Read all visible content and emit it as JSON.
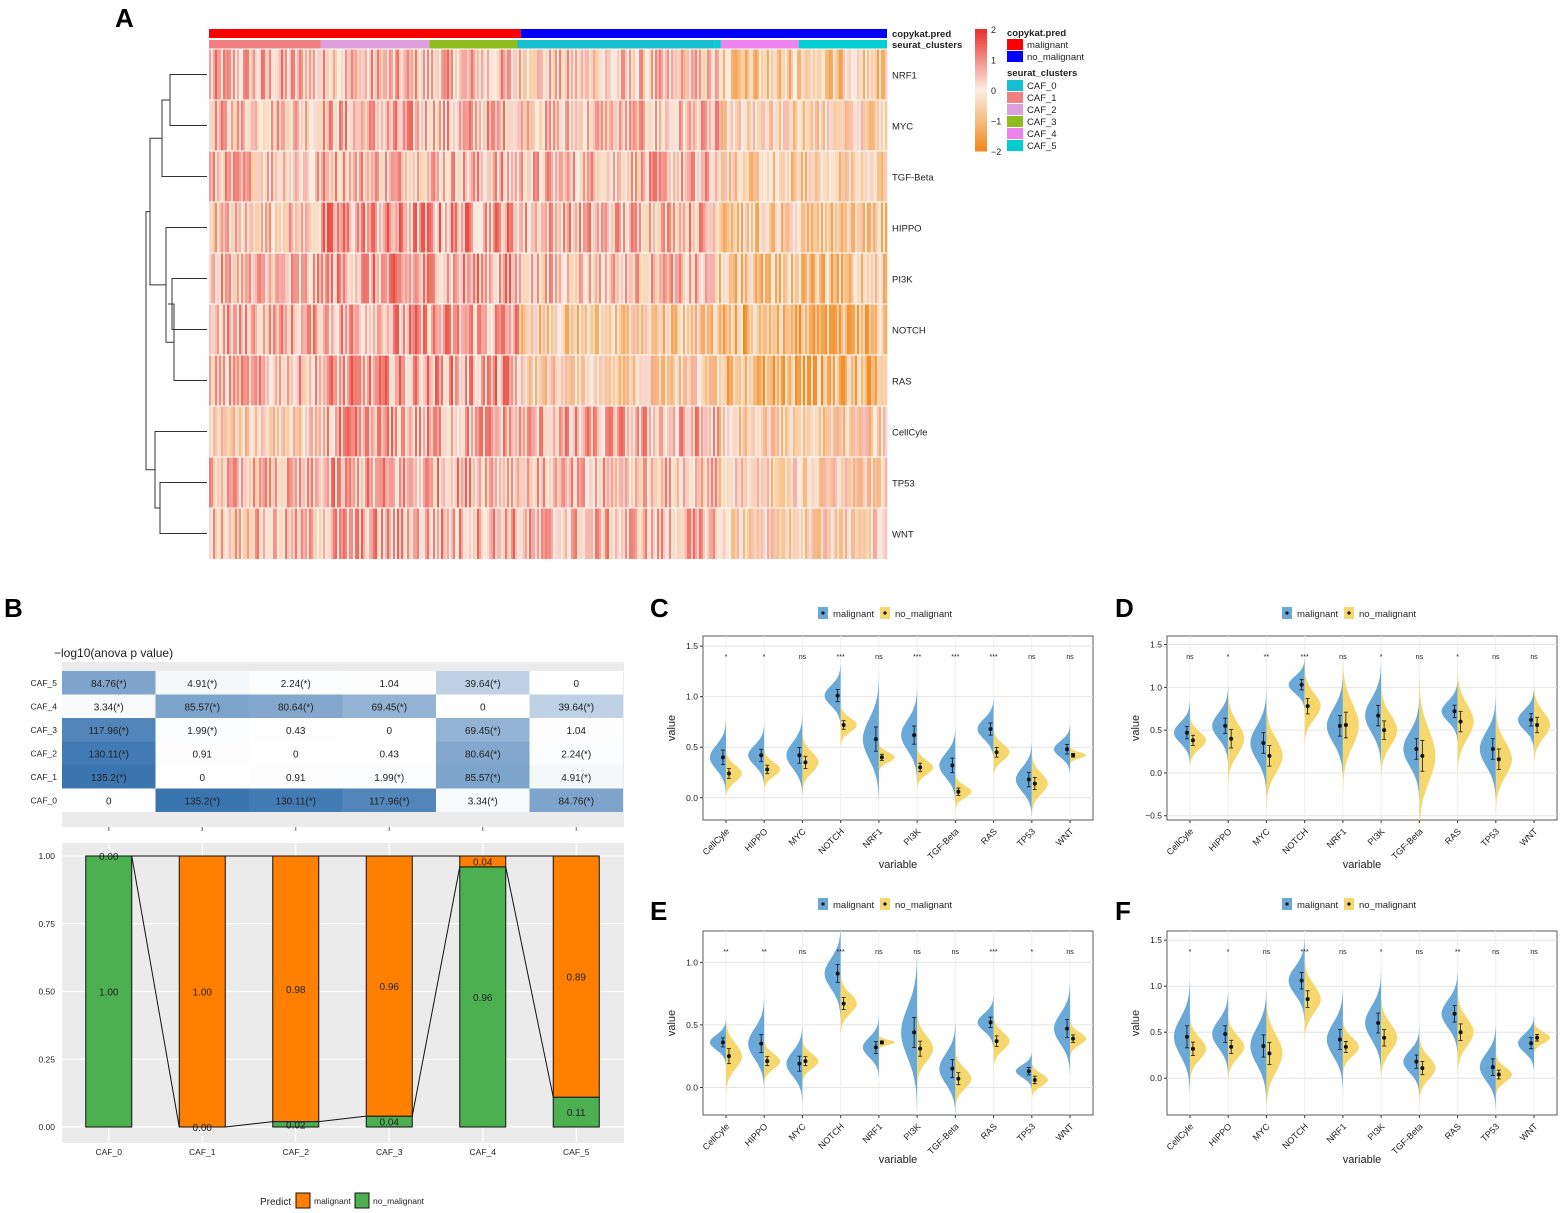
{
  "panel_labels": [
    "A",
    "B",
    "C",
    "D",
    "E",
    "F"
  ],
  "colors": {
    "malignant": "#ff0000",
    "no_malignant": "#0000ff",
    "caf": [
      "#17becf",
      "#f08080",
      "#dda0dd",
      "#8fbc1f",
      "#ee82ee",
      "#00ced1"
    ],
    "heat_low": "#f28a1e",
    "heat_mid": "#fbeee4",
    "heat_high": "#e8312a",
    "violin_malignant": "#6aa8d8",
    "violin_no_malignant": "#f5d76e",
    "bar_malignant": "#ff8000",
    "bar_no_malignant": "#4caf50",
    "anova_dark": "#3b75b0"
  },
  "chart_data": [
    {
      "id": "A",
      "type": "heatmap",
      "rows": [
        "NRF1",
        "MYC",
        "TGF-Beta",
        "HIPPO",
        "PI3K",
        "NOTCH",
        "RAS",
        "CellCyle",
        "TP53",
        "WNT"
      ],
      "annotation_names": [
        "copykat.pred",
        "seurat_clusters"
      ],
      "copykat_legend": {
        "title": "copykat.pred",
        "items": [
          "malignant",
          "no_malignant"
        ]
      },
      "cluster_legend": {
        "title": "seurat_clusters",
        "items": [
          "CAF_0",
          "CAF_1",
          "CAF_2",
          "CAF_3",
          "CAF_4",
          "CAF_5"
        ]
      },
      "copykat_split": [
        [
          "malignant",
          0.46
        ],
        [
          "no_malignant",
          0.54
        ]
      ],
      "cluster_segments": [
        [
          "CAF_1",
          0.165
        ],
        [
          "CAF_2",
          0.16
        ],
        [
          "CAF_3",
          0.13
        ],
        [
          "CAF_0",
          0.29
        ],
        [
          "CAF_5",
          0.01
        ],
        [
          "CAF_4",
          0.115
        ],
        [
          "CAF_5",
          0.13
        ]
      ],
      "color_scale": {
        "ticks": [
          "2",
          "1",
          "0",
          "−1",
          "−2"
        ],
        "range": [
          -2,
          2
        ]
      },
      "row_mean_by_region": {
        "NRF1": [
          0.5,
          0.4,
          0.2,
          -0.6
        ],
        "MYC": [
          0.4,
          0.5,
          0.3,
          -0.3
        ],
        "TGF-Beta": [
          0.4,
          0.5,
          0.4,
          -0.4
        ],
        "HIPPO": [
          0.2,
          0.8,
          0.5,
          -0.6
        ],
        "PI3K": [
          0.4,
          0.7,
          0.3,
          -0.7
        ],
        "NOTCH": [
          0.5,
          0.7,
          -0.5,
          -1.0
        ],
        "RAS": [
          0.4,
          0.7,
          -0.3,
          -1.1
        ],
        "CellCyle": [
          -0.2,
          0.6,
          0.5,
          -0.3
        ],
        "TP53": [
          0.3,
          0.6,
          0.3,
          -0.2
        ],
        "WNT": [
          0.3,
          0.6,
          0.4,
          -0.2
        ]
      }
    },
    {
      "id": "B-top",
      "type": "heatmap",
      "title": "−log10(anova p value)",
      "rows": [
        "CAF_5",
        "CAF_4",
        "CAF_3",
        "CAF_2",
        "CAF_1",
        "CAF_0"
      ],
      "cols": [
        "CAF_0",
        "CAF_1",
        "CAF_2",
        "CAF_3",
        "CAF_4",
        "CAF_5"
      ],
      "values": [
        [
          84.76,
          4.91,
          2.24,
          1.04,
          39.64,
          0
        ],
        [
          3.34,
          85.57,
          80.64,
          69.45,
          0,
          39.64
        ],
        [
          117.96,
          1.99,
          0.43,
          0,
          69.45,
          1.04
        ],
        [
          130.11,
          0.91,
          0,
          0.43,
          80.64,
          2.24
        ],
        [
          135.2,
          0,
          0.91,
          1.99,
          85.57,
          4.91
        ],
        [
          0,
          135.2,
          130.11,
          117.96,
          3.34,
          84.76
        ]
      ],
      "labels": [
        [
          "84.76(*)",
          "4.91(*)",
          "2.24(*)",
          "1.04",
          "39.64(*)",
          "0"
        ],
        [
          "3.34(*)",
          "85.57(*)",
          "80.64(*)",
          "69.45(*)",
          "0",
          "39.64(*)"
        ],
        [
          "117.96(*)",
          "1.99(*)",
          "0.43",
          "0",
          "69.45(*)",
          "1.04"
        ],
        [
          "130.11(*)",
          "0.91",
          "0",
          "0.43",
          "80.64(*)",
          "2.24(*)"
        ],
        [
          "135.2(*)",
          "0",
          "0.91",
          "1.99(*)",
          "85.57(*)",
          "4.91(*)"
        ],
        [
          "0",
          "135.2(*)",
          "130.11(*)",
          "117.96(*)",
          "3.34(*)",
          "84.76(*)"
        ]
      ],
      "max": 135.2
    },
    {
      "id": "B-bottom",
      "type": "bar",
      "stacked": true,
      "categories": [
        "CAF_0",
        "CAF_1",
        "CAF_2",
        "CAF_3",
        "CAF_4",
        "CAF_5"
      ],
      "series": [
        {
          "name": "malignant",
          "values": [
            0.0,
            1.0,
            0.98,
            0.96,
            0.04,
            0.89
          ]
        },
        {
          "name": "no_malignant",
          "values": [
            1.0,
            0.0,
            0.02,
            0.04,
            0.96,
            0.11
          ]
        }
      ],
      "malignant_labels": [
        "",
        "1.00",
        "0.98",
        "0.96",
        "0.04",
        "0.89"
      ],
      "no_malignant_labels": [
        "1.00",
        "",
        "0.02",
        "0.04",
        "0.96",
        "0.11"
      ],
      "overlap_labels": [
        "0.00",
        "0.00"
      ],
      "y_ticks": [
        "0.00",
        "0.25",
        "0.50",
        "0.75",
        "1.00"
      ],
      "ylim": [
        0,
        1
      ],
      "legend": {
        "title": "Predict",
        "items": [
          "malignant",
          "no_malignant"
        ],
        "placement": "bottom"
      }
    },
    {
      "id": "C",
      "type": "violin",
      "legend": [
        "malignant",
        "no_malignant"
      ],
      "xlabel": "variable",
      "ylabel": "value",
      "categories": [
        "CellCyle",
        "HIPPO",
        "MYC",
        "NOTCH",
        "NRF1",
        "PI3K",
        "TGF-Beta",
        "RAS",
        "TP53",
        "WNT"
      ],
      "significance": [
        "*",
        "*",
        "ns",
        "***",
        "ns",
        "***",
        "***",
        "***",
        "ns",
        "ns"
      ],
      "y_ticks": [
        "0.0",
        "0.5",
        "1.0",
        "1.5"
      ],
      "ylim": [
        -0.22,
        1.6
      ],
      "malignant_mean": [
        0.4,
        0.42,
        0.42,
        1.01,
        0.58,
        0.62,
        0.32,
        0.68,
        0.18,
        0.48
      ],
      "malignant_sd": [
        0.12,
        0.1,
        0.13,
        0.1,
        0.2,
        0.15,
        0.12,
        0.1,
        0.12,
        0.08
      ],
      "no_malignant_mean": [
        0.24,
        0.28,
        0.35,
        0.72,
        0.4,
        0.3,
        0.06,
        0.45,
        0.14,
        0.42
      ],
      "no_malignant_sd": [
        0.08,
        0.07,
        0.1,
        0.07,
        0.05,
        0.07,
        0.06,
        0.08,
        0.1,
        0.03
      ]
    },
    {
      "id": "D",
      "type": "violin",
      "legend": [
        "malignant",
        "no_malignant"
      ],
      "xlabel": "variable",
      "ylabel": "value",
      "categories": [
        "CellCyle",
        "HIPPO",
        "MYC",
        "NOTCH",
        "NRF1",
        "PI3K",
        "TGF-Beta",
        "RAS",
        "TP53",
        "WNT"
      ],
      "significance": [
        "ns",
        "*",
        "**",
        "***",
        "ns",
        "*",
        "ns",
        "*",
        "ns",
        "ns"
      ],
      "y_ticks": [
        "−0.5",
        "0.0",
        "0.5",
        "1.0",
        "1.5"
      ],
      "ylim": [
        -0.55,
        1.6
      ],
      "malignant_mean": [
        0.47,
        0.55,
        0.35,
        1.03,
        0.55,
        0.67,
        0.28,
        0.72,
        0.28,
        0.62
      ],
      "malignant_sd": [
        0.12,
        0.15,
        0.2,
        0.1,
        0.2,
        0.2,
        0.2,
        0.12,
        0.2,
        0.12
      ],
      "no_malignant_mean": [
        0.38,
        0.4,
        0.2,
        0.78,
        0.56,
        0.5,
        0.2,
        0.6,
        0.16,
        0.56
      ],
      "no_malignant_sd": [
        0.1,
        0.18,
        0.2,
        0.15,
        0.25,
        0.18,
        0.3,
        0.2,
        0.2,
        0.15
      ]
    },
    {
      "id": "E",
      "type": "violin",
      "legend": [
        "malignant",
        "no_malignant"
      ],
      "xlabel": "variable",
      "ylabel": "value",
      "categories": [
        "CellCyle",
        "HIPPO",
        "MYC",
        "NOTCH",
        "NRF1",
        "PI3K",
        "TGF-Beta",
        "RAS",
        "TP53",
        "WNT"
      ],
      "significance": [
        "**",
        "**",
        "ns",
        "***",
        "ns",
        "ns",
        "ns",
        "***",
        "*",
        "ns"
      ],
      "y_ticks": [
        "0.0",
        "0.5",
        "1.0"
      ],
      "ylim": [
        -0.22,
        1.25
      ],
      "malignant_mean": [
        0.36,
        0.35,
        0.19,
        0.91,
        0.32,
        0.44,
        0.15,
        0.52,
        0.13,
        0.47
      ],
      "malignant_sd": [
        0.06,
        0.12,
        0.1,
        0.12,
        0.08,
        0.2,
        0.12,
        0.07,
        0.05,
        0.12
      ],
      "no_malignant_mean": [
        0.25,
        0.21,
        0.21,
        0.67,
        0.36,
        0.31,
        0.07,
        0.37,
        0.06,
        0.39
      ],
      "no_malignant_sd": [
        0.1,
        0.06,
        0.06,
        0.08,
        0.02,
        0.1,
        0.08,
        0.07,
        0.05,
        0.05
      ]
    },
    {
      "id": "F",
      "type": "violin",
      "legend": [
        "malignant",
        "no_malignant"
      ],
      "xlabel": "variable",
      "ylabel": "value",
      "categories": [
        "CellCyle",
        "HIPPO",
        "MYC",
        "NOTCH",
        "NRF1",
        "PI3K",
        "TGF-Beta",
        "RAS",
        "TP53",
        "WNT"
      ],
      "significance": [
        "*",
        "*",
        "ns",
        "***",
        "ns",
        "*",
        "ns",
        "**",
        "ns",
        "ns"
      ],
      "y_ticks": [
        "0.0",
        "0.5",
        "1.0",
        "1.5"
      ],
      "ylim": [
        -0.4,
        1.6
      ],
      "malignant_mean": [
        0.45,
        0.48,
        0.35,
        1.06,
        0.42,
        0.6,
        0.18,
        0.7,
        0.12,
        0.38
      ],
      "malignant_sd": [
        0.2,
        0.15,
        0.2,
        0.15,
        0.18,
        0.18,
        0.12,
        0.15,
        0.15,
        0.1
      ],
      "no_malignant_mean": [
        0.32,
        0.34,
        0.27,
        0.86,
        0.34,
        0.44,
        0.11,
        0.5,
        0.04,
        0.44
      ],
      "no_malignant_sd": [
        0.12,
        0.12,
        0.2,
        0.15,
        0.1,
        0.15,
        0.12,
        0.15,
        0.08,
        0.06
      ]
    }
  ]
}
